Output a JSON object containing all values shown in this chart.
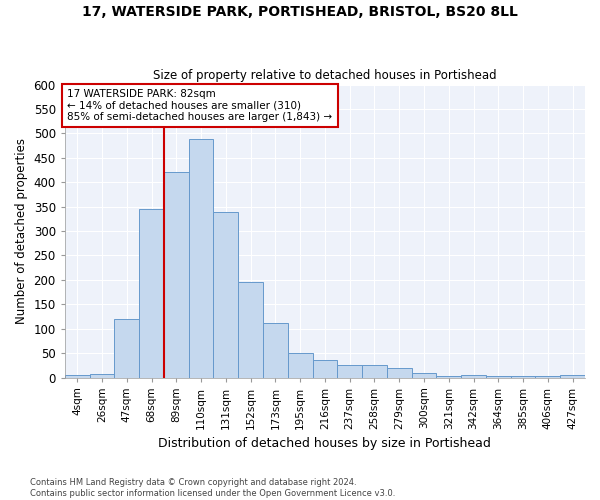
{
  "title": "17, WATERSIDE PARK, PORTISHEAD, BRISTOL, BS20 8LL",
  "subtitle": "Size of property relative to detached houses in Portishead",
  "xlabel": "Distribution of detached houses by size in Portishead",
  "ylabel": "Number of detached properties",
  "categories": [
    "4sqm",
    "26sqm",
    "47sqm",
    "68sqm",
    "89sqm",
    "110sqm",
    "131sqm",
    "152sqm",
    "173sqm",
    "195sqm",
    "216sqm",
    "237sqm",
    "258sqm",
    "279sqm",
    "300sqm",
    "321sqm",
    "342sqm",
    "364sqm",
    "385sqm",
    "406sqm",
    "427sqm"
  ],
  "values": [
    5,
    7,
    120,
    345,
    420,
    488,
    338,
    195,
    112,
    50,
    35,
    26,
    26,
    20,
    10,
    3,
    5,
    4,
    4,
    3,
    5
  ],
  "bar_color": "#c5d8ee",
  "bar_edge_color": "#6699cc",
  "background_color": "#eef2fa",
  "grid_color": "#ffffff",
  "property_label": "17 WATERSIDE PARK: 82sqm",
  "annotation_line1": "← 14% of detached houses are smaller (310)",
  "annotation_line2": "85% of semi-detached houses are larger (1,843) →",
  "vline_color": "#cc0000",
  "vline_x_index": 4,
  "box_color": "#cc0000",
  "ylim": [
    0,
    600
  ],
  "yticks": [
    0,
    50,
    100,
    150,
    200,
    250,
    300,
    350,
    400,
    450,
    500,
    550,
    600
  ],
  "footer_line1": "Contains HM Land Registry data © Crown copyright and database right 2024.",
  "footer_line2": "Contains public sector information licensed under the Open Government Licence v3.0."
}
